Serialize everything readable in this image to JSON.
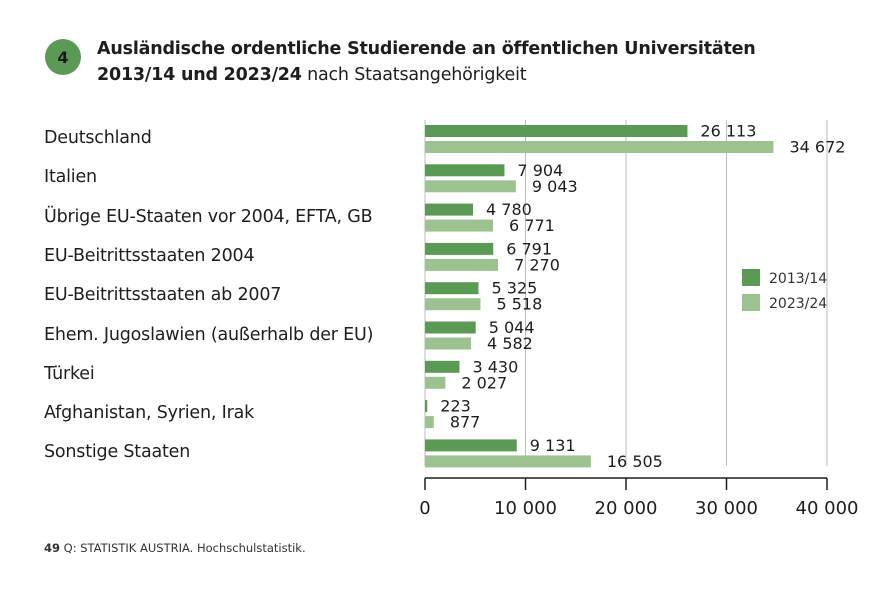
{
  "badge": "4",
  "title": {
    "bold_line1": "Ausländische ordentliche Studierende an öffentlichen Universitäten",
    "bold_line2": "2013/14 und 2023/24",
    "normal_line2": " nach Staatsangehörigkeit"
  },
  "source": {
    "number": "49",
    "text": " Q: STATISTIK AUSTRIA. Hochschulstatistik."
  },
  "colors": {
    "series_2013": "#5a9a55",
    "series_2023": "#9cc38f",
    "badge": "#5a9a55",
    "grid": "#bdbdbd",
    "axis": "#1e1e1e"
  },
  "chart_data": {
    "type": "bar",
    "orientation": "horizontal",
    "title": "Ausländische ordentliche Studierende an öffentlichen Universitäten 2013/14 und 2023/24 nach Staatsangehörigkeit",
    "xlabel": "",
    "ylabel": "",
    "xlim": [
      0,
      40000
    ],
    "xticks": [
      0,
      10000,
      20000,
      30000,
      40000
    ],
    "xtick_labels": [
      "0",
      "10 000",
      "20 000",
      "30 000",
      "40 000"
    ],
    "grid": "vertical",
    "legend_position": "right",
    "categories": [
      "Deutschland",
      "Italien",
      "Übrige EU-Staaten vor 2004, EFTA, GB",
      "EU-Beitrittsstaaten 2004",
      "EU-Beitrittsstaaten ab 2007",
      "Ehem. Jugoslawien (außerhalb der EU)",
      "Türkei",
      "Afghanistan, Syrien, Irak",
      "Sonstige Staaten"
    ],
    "series": [
      {
        "name": "2013/14",
        "values": [
          26113,
          7904,
          4780,
          6791,
          5325,
          5044,
          3430,
          223,
          9131
        ],
        "labels": [
          "26 113",
          "7 904",
          "4 780",
          "6 791",
          "5 325",
          "5 044",
          "3 430",
          "223",
          "9 131"
        ]
      },
      {
        "name": "2023/24",
        "values": [
          34672,
          9043,
          6771,
          7270,
          5518,
          4582,
          2027,
          877,
          16505
        ],
        "labels": [
          "34 672",
          "9 043",
          "6 771",
          "7 270",
          "5 518",
          "4 582",
          "2 027",
          "877",
          "16 505"
        ]
      }
    ]
  }
}
